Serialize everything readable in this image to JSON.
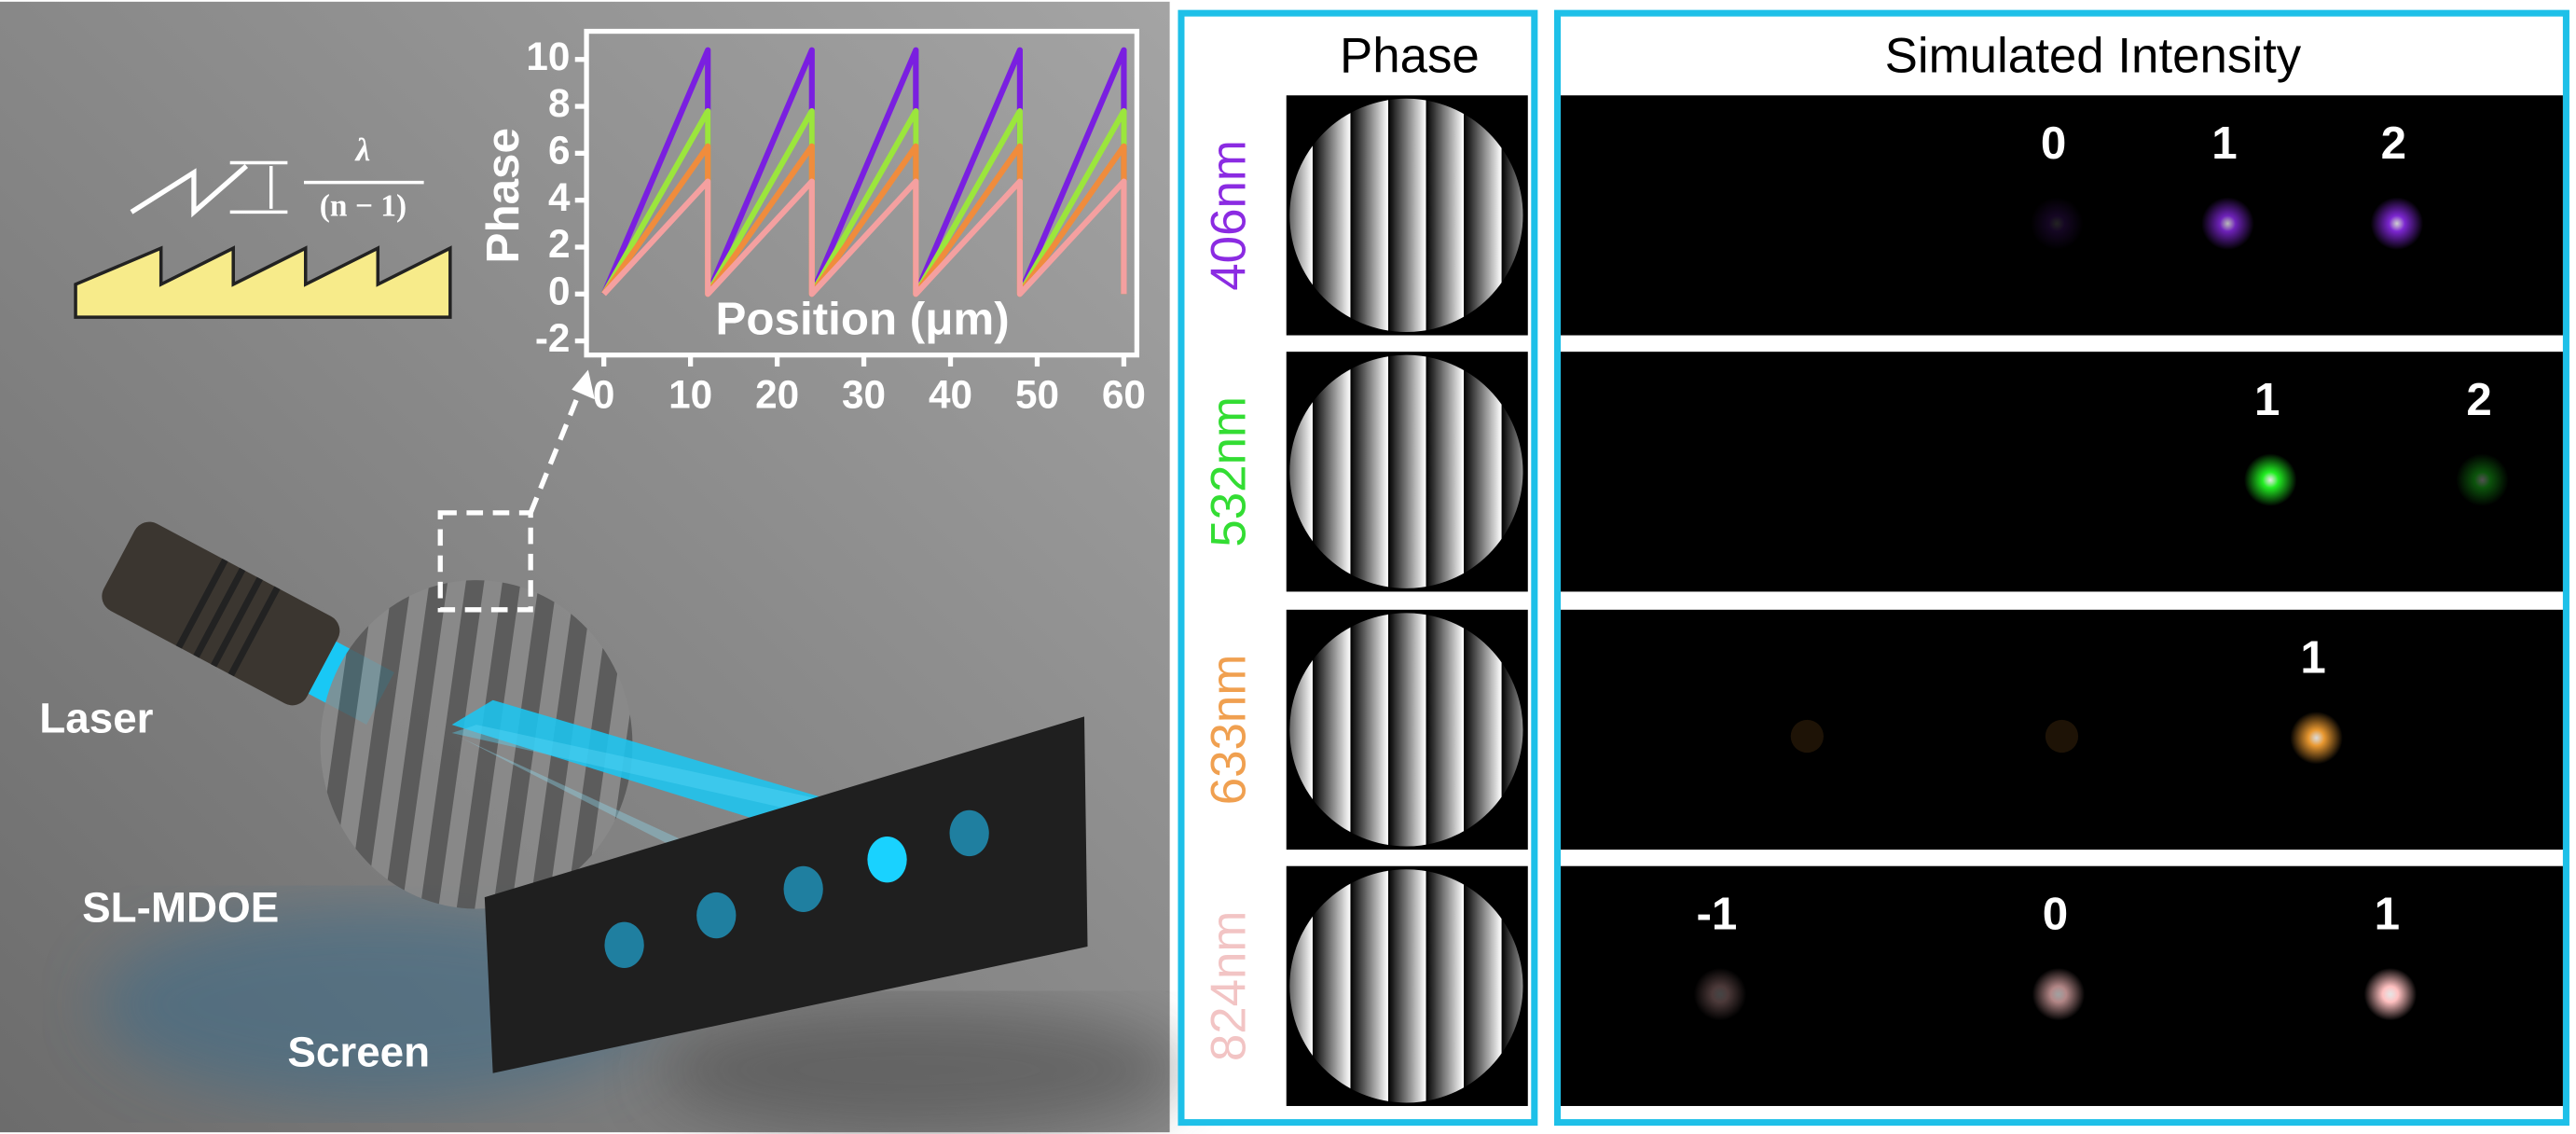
{
  "scene": {
    "labels": [
      "Laser",
      "SL-MDOE",
      "Screen"
    ],
    "fraction": {
      "numerator": "λ",
      "denominator": "(n − 1)"
    }
  },
  "chart_data": {
    "type": "line",
    "x_label": "Position (μm)",
    "y_label": "Phase",
    "x": [
      0,
      12,
      12,
      24,
      24,
      36,
      36,
      48,
      48,
      60,
      60
    ],
    "series": [
      {
        "name": "406nm",
        "color": "#7a1fe0",
        "values": [
          0,
          10.4,
          0,
          10.4,
          0,
          10.4,
          0,
          10.4,
          0,
          10.4,
          0
        ]
      },
      {
        "name": "532nm",
        "color": "#9be63c",
        "values": [
          0,
          7.8,
          0,
          7.8,
          0,
          7.8,
          0,
          7.8,
          0,
          7.8,
          0
        ]
      },
      {
        "name": "633nm",
        "color": "#f08c3c",
        "values": [
          0,
          6.3,
          0,
          6.3,
          0,
          6.3,
          0,
          6.3,
          0,
          6.3,
          0
        ]
      },
      {
        "name": "824nm",
        "color": "#f4a0a0",
        "values": [
          0,
          4.8,
          0,
          4.8,
          0,
          4.8,
          0,
          4.8,
          0,
          4.8,
          0
        ]
      }
    ],
    "xlim": [
      -2,
      61.5
    ],
    "ylim": [
      -2.6,
      11.2
    ],
    "xticks": [
      0,
      10,
      20,
      30,
      40,
      50,
      60
    ],
    "yticks": [
      -2,
      0,
      2,
      4,
      6,
      8,
      10
    ]
  },
  "panels": {
    "phase_title": "Phase",
    "intensity_title": "Simulated Intensity",
    "rows": [
      {
        "wavelength": "406nm",
        "color": "#8b2be2",
        "spot_color": "#8a2be8",
        "orders": [
          "0",
          "1",
          "2"
        ]
      },
      {
        "wavelength": "532nm",
        "color": "#33dd33",
        "spot_color": "#22ee22",
        "orders": [
          "1",
          "2"
        ]
      },
      {
        "wavelength": "633nm",
        "color": "#f0a050",
        "spot_color": "#f5a033",
        "orders": [
          "1"
        ]
      },
      {
        "wavelength": "824nm",
        "color": "#f2c4c4",
        "spot_color": "#ffc0c0",
        "orders": [
          "-1",
          "0",
          "1"
        ]
      }
    ]
  }
}
